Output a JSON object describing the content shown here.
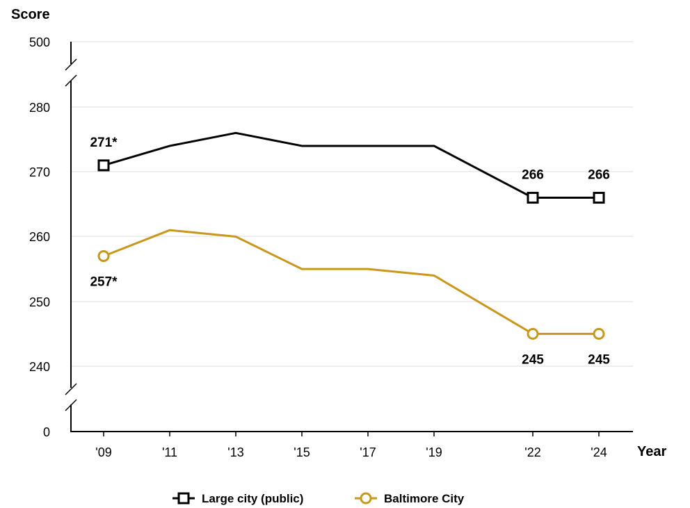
{
  "chart_data": {
    "type": "line",
    "ylabel": "Score",
    "xlabel": "Year",
    "categories": [
      "'09",
      "'11",
      "'13",
      "'15",
      "'17",
      "'19",
      "'22",
      "'24"
    ],
    "y_tick_labels": [
      "500",
      "280",
      "270",
      "260",
      "250",
      "240",
      "0"
    ],
    "ylim": [
      240,
      280
    ],
    "axis_breaks": [
      "between 280 and 500",
      "between 0 and 240"
    ],
    "grid": true,
    "legend_position": "bottom",
    "series": [
      {
        "name": "Large city (public)",
        "values": [
          271,
          274,
          276,
          274,
          274,
          274,
          266,
          266
        ],
        "color": "#000000",
        "marker": "square",
        "labels": [
          {
            "index": 0,
            "text": "271*",
            "position": "above"
          },
          {
            "index": 6,
            "text": "266",
            "position": "above"
          },
          {
            "index": 7,
            "text": "266",
            "position": "above"
          }
        ]
      },
      {
        "name": "Baltimore City",
        "values": [
          257,
          261,
          260,
          255,
          255,
          254,
          245,
          245
        ],
        "color": "#c9971c",
        "marker": "circle",
        "labels": [
          {
            "index": 0,
            "text": "257*",
            "position": "below"
          },
          {
            "index": 6,
            "text": "245",
            "position": "below"
          },
          {
            "index": 7,
            "text": "245",
            "position": "below"
          }
        ]
      }
    ]
  }
}
